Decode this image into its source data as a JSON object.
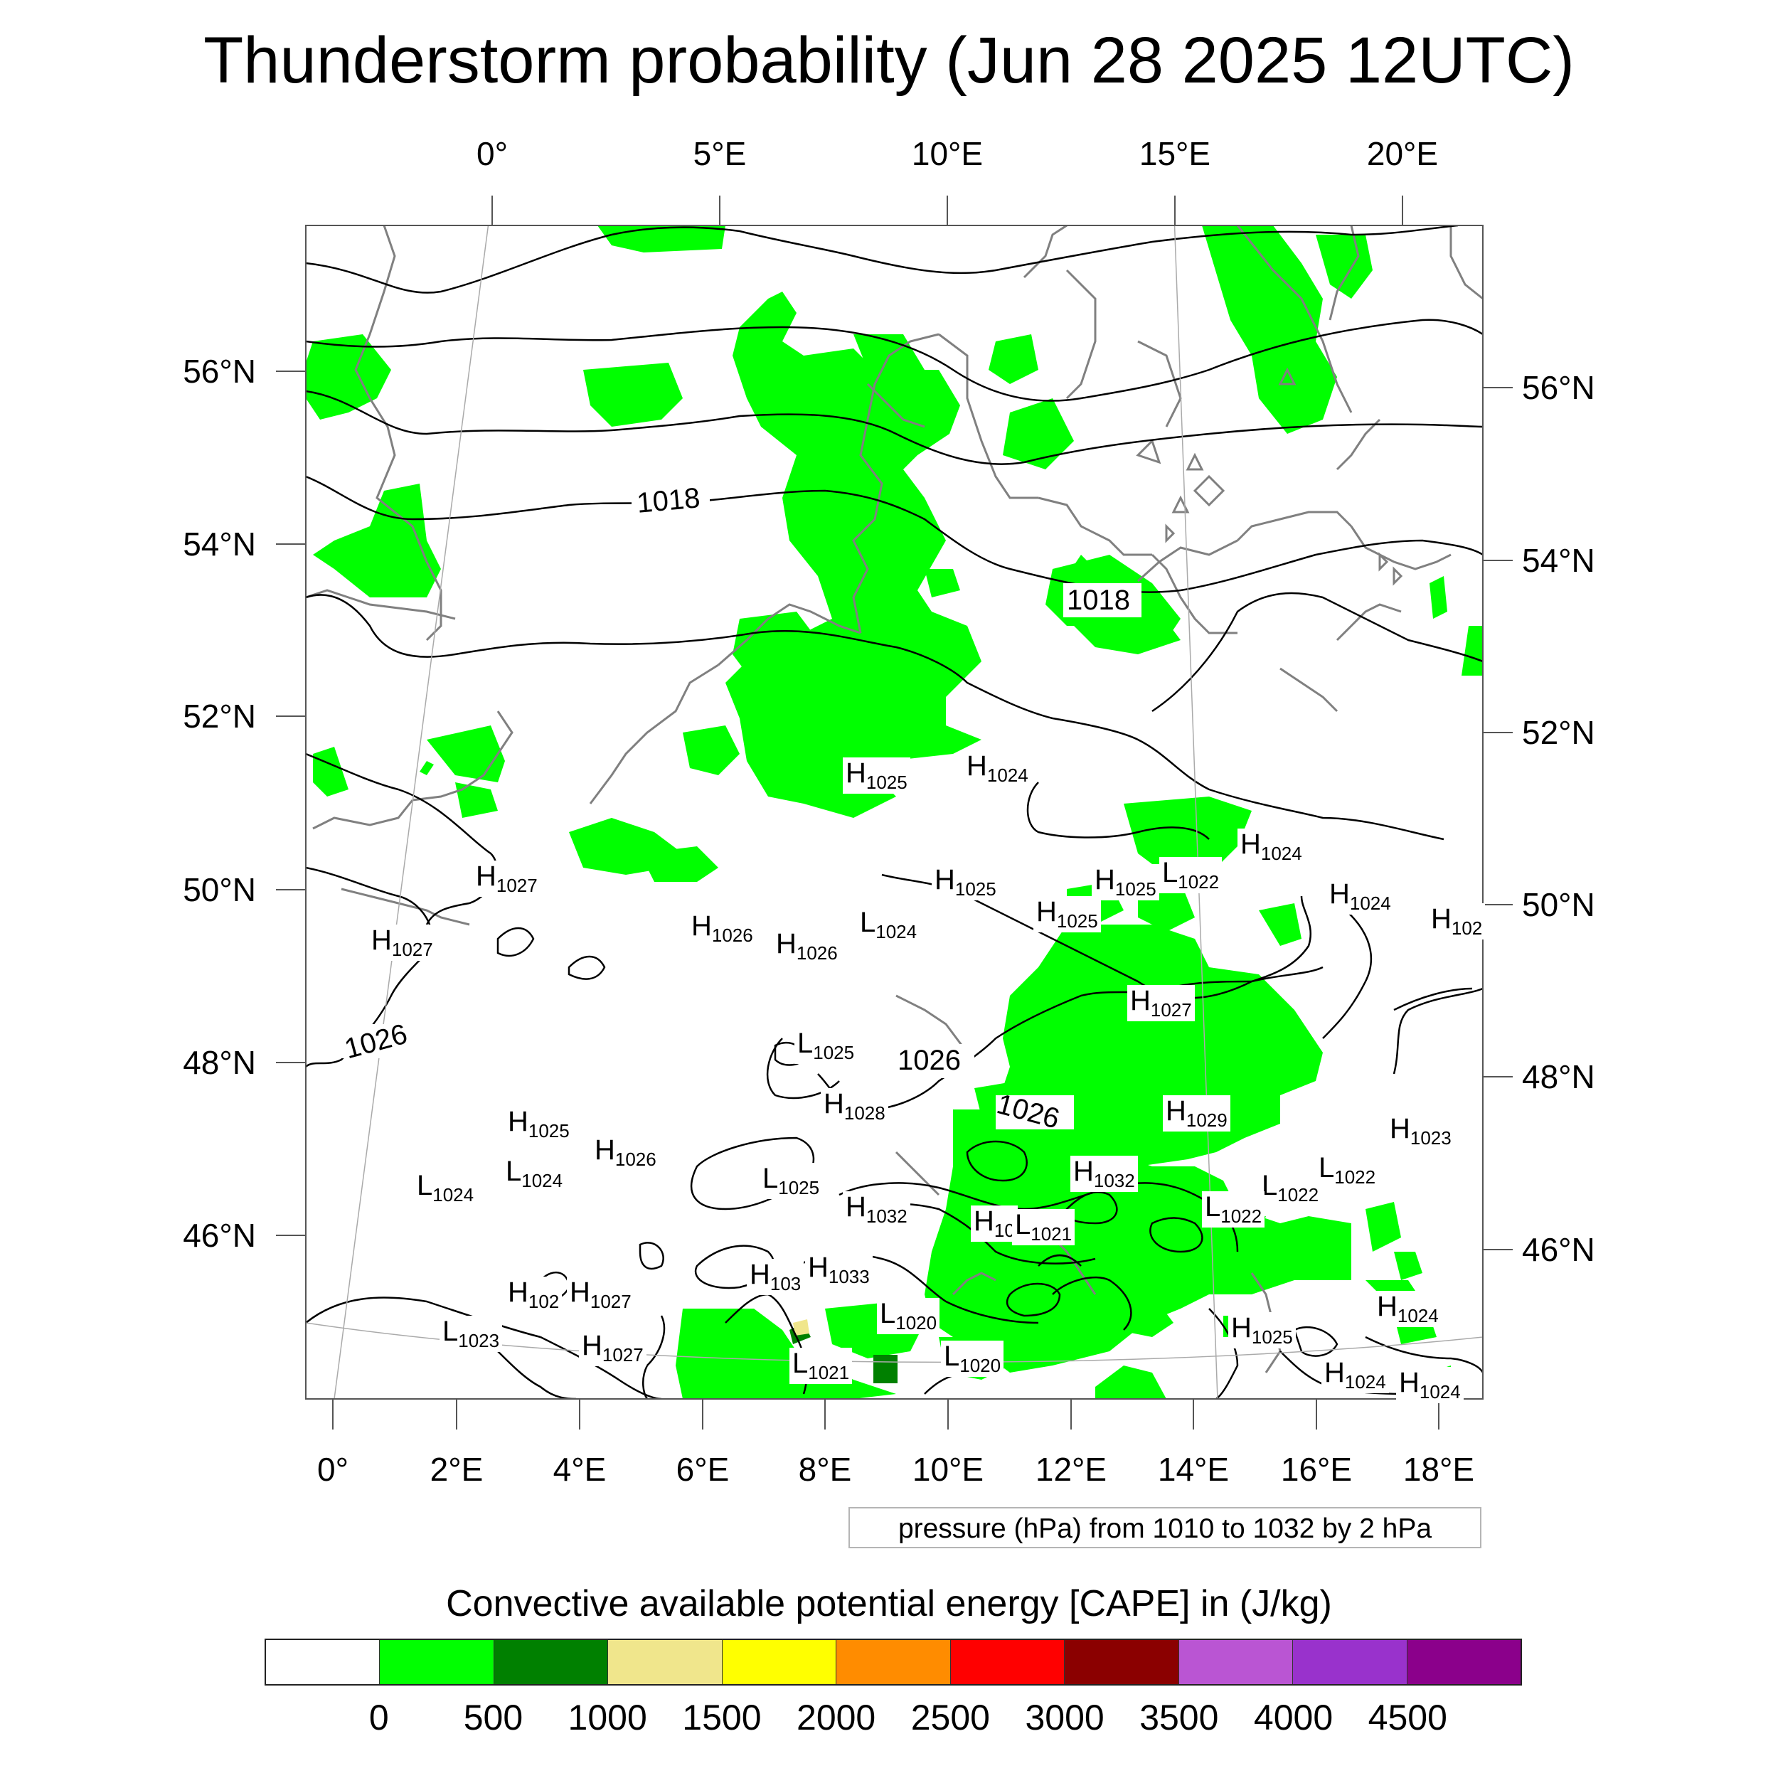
{
  "title": "Thunderstorm probability (Jun 28 2025 12UTC)",
  "top_axis_labels": [
    "0°",
    "5°E",
    "10°E",
    "15°E",
    "20°E"
  ],
  "bottom_axis_labels": [
    "0°",
    "2°E",
    "4°E",
    "6°E",
    "8°E",
    "10°E",
    "12°E",
    "14°E",
    "16°E",
    "18°E"
  ],
  "left_axis_labels": [
    "56°N",
    "54°N",
    "52°N",
    "50°N",
    "48°N",
    "46°N"
  ],
  "right_axis_labels": [
    "56°N",
    "54°N",
    "52°N",
    "50°N",
    "48°N",
    "46°N"
  ],
  "isobar_labels": [
    "1018",
    "1018",
    "1026",
    "1026",
    "1026"
  ],
  "pressure_centers": [
    {
      "letter": "H",
      "value": "1025"
    },
    {
      "letter": "H",
      "value": "1024"
    },
    {
      "letter": "H",
      "value": "1027"
    },
    {
      "letter": "H",
      "value": "1027"
    },
    {
      "letter": "H",
      "value": "1024"
    },
    {
      "letter": "L",
      "value": "1022"
    },
    {
      "letter": "H",
      "value": "1025"
    },
    {
      "letter": "H",
      "value": "1025"
    },
    {
      "letter": "H",
      "value": "1025"
    },
    {
      "letter": "H",
      "value": "1024"
    },
    {
      "letter": "H",
      "value": "102"
    },
    {
      "letter": "H",
      "value": "1026"
    },
    {
      "letter": "H",
      "value": "1026"
    },
    {
      "letter": "L",
      "value": "1024"
    },
    {
      "letter": "H",
      "value": "1027"
    },
    {
      "letter": "L",
      "value": "1025"
    },
    {
      "letter": "H",
      "value": "1028"
    },
    {
      "letter": "H",
      "value": "1029"
    },
    {
      "letter": "H",
      "value": "1023"
    },
    {
      "letter": "H",
      "value": "1025"
    },
    {
      "letter": "H",
      "value": "1026"
    },
    {
      "letter": "L",
      "value": "1024"
    },
    {
      "letter": "L",
      "value": "1024"
    },
    {
      "letter": "H",
      "value": "1032"
    },
    {
      "letter": "L",
      "value": "1022"
    },
    {
      "letter": "L",
      "value": "1022"
    },
    {
      "letter": "L",
      "value": "1025"
    },
    {
      "letter": "H",
      "value": "1032"
    },
    {
      "letter": "H",
      "value": "10"
    },
    {
      "letter": "L",
      "value": "1021"
    },
    {
      "letter": "L",
      "value": "1022"
    },
    {
      "letter": "H",
      "value": "103"
    },
    {
      "letter": "H",
      "value": "1033"
    },
    {
      "letter": "H",
      "value": "102"
    },
    {
      "letter": "H",
      "value": "1027"
    },
    {
      "letter": "L",
      "value": "1020"
    },
    {
      "letter": "L",
      "value": "1023"
    },
    {
      "letter": "H",
      "value": "1027"
    },
    {
      "letter": "L",
      "value": "1021"
    },
    {
      "letter": "L",
      "value": "1020"
    },
    {
      "letter": "H",
      "value": "1025"
    },
    {
      "letter": "H",
      "value": "1024"
    },
    {
      "letter": "H",
      "value": "1024"
    },
    {
      "letter": "H",
      "value": "1024"
    }
  ],
  "pressure_note": "pressure (hPa) from 1010 to 1032 by 2 hPa",
  "legend": {
    "title": "Convective available potential energy [CAPE] in (J/kg)",
    "colors": [
      "#ffffff",
      "#00ff00",
      "#008000",
      "#f0e68c",
      "#ffff00",
      "#ff8c00",
      "#ff0000",
      "#8b0000",
      "#ba55d3",
      "#9932cc",
      "#8b008b"
    ],
    "labels": [
      "0",
      "500",
      "1000",
      "1500",
      "2000",
      "2500",
      "3000",
      "3500",
      "4000",
      "4500"
    ]
  },
  "map_colors": {
    "cape_low": "#00ff00",
    "cape_mid": "#008000",
    "cape_high": "#f0e68c",
    "coastline": "#808080",
    "isobar": "#000000",
    "graticule": "#aaaaaa"
  }
}
